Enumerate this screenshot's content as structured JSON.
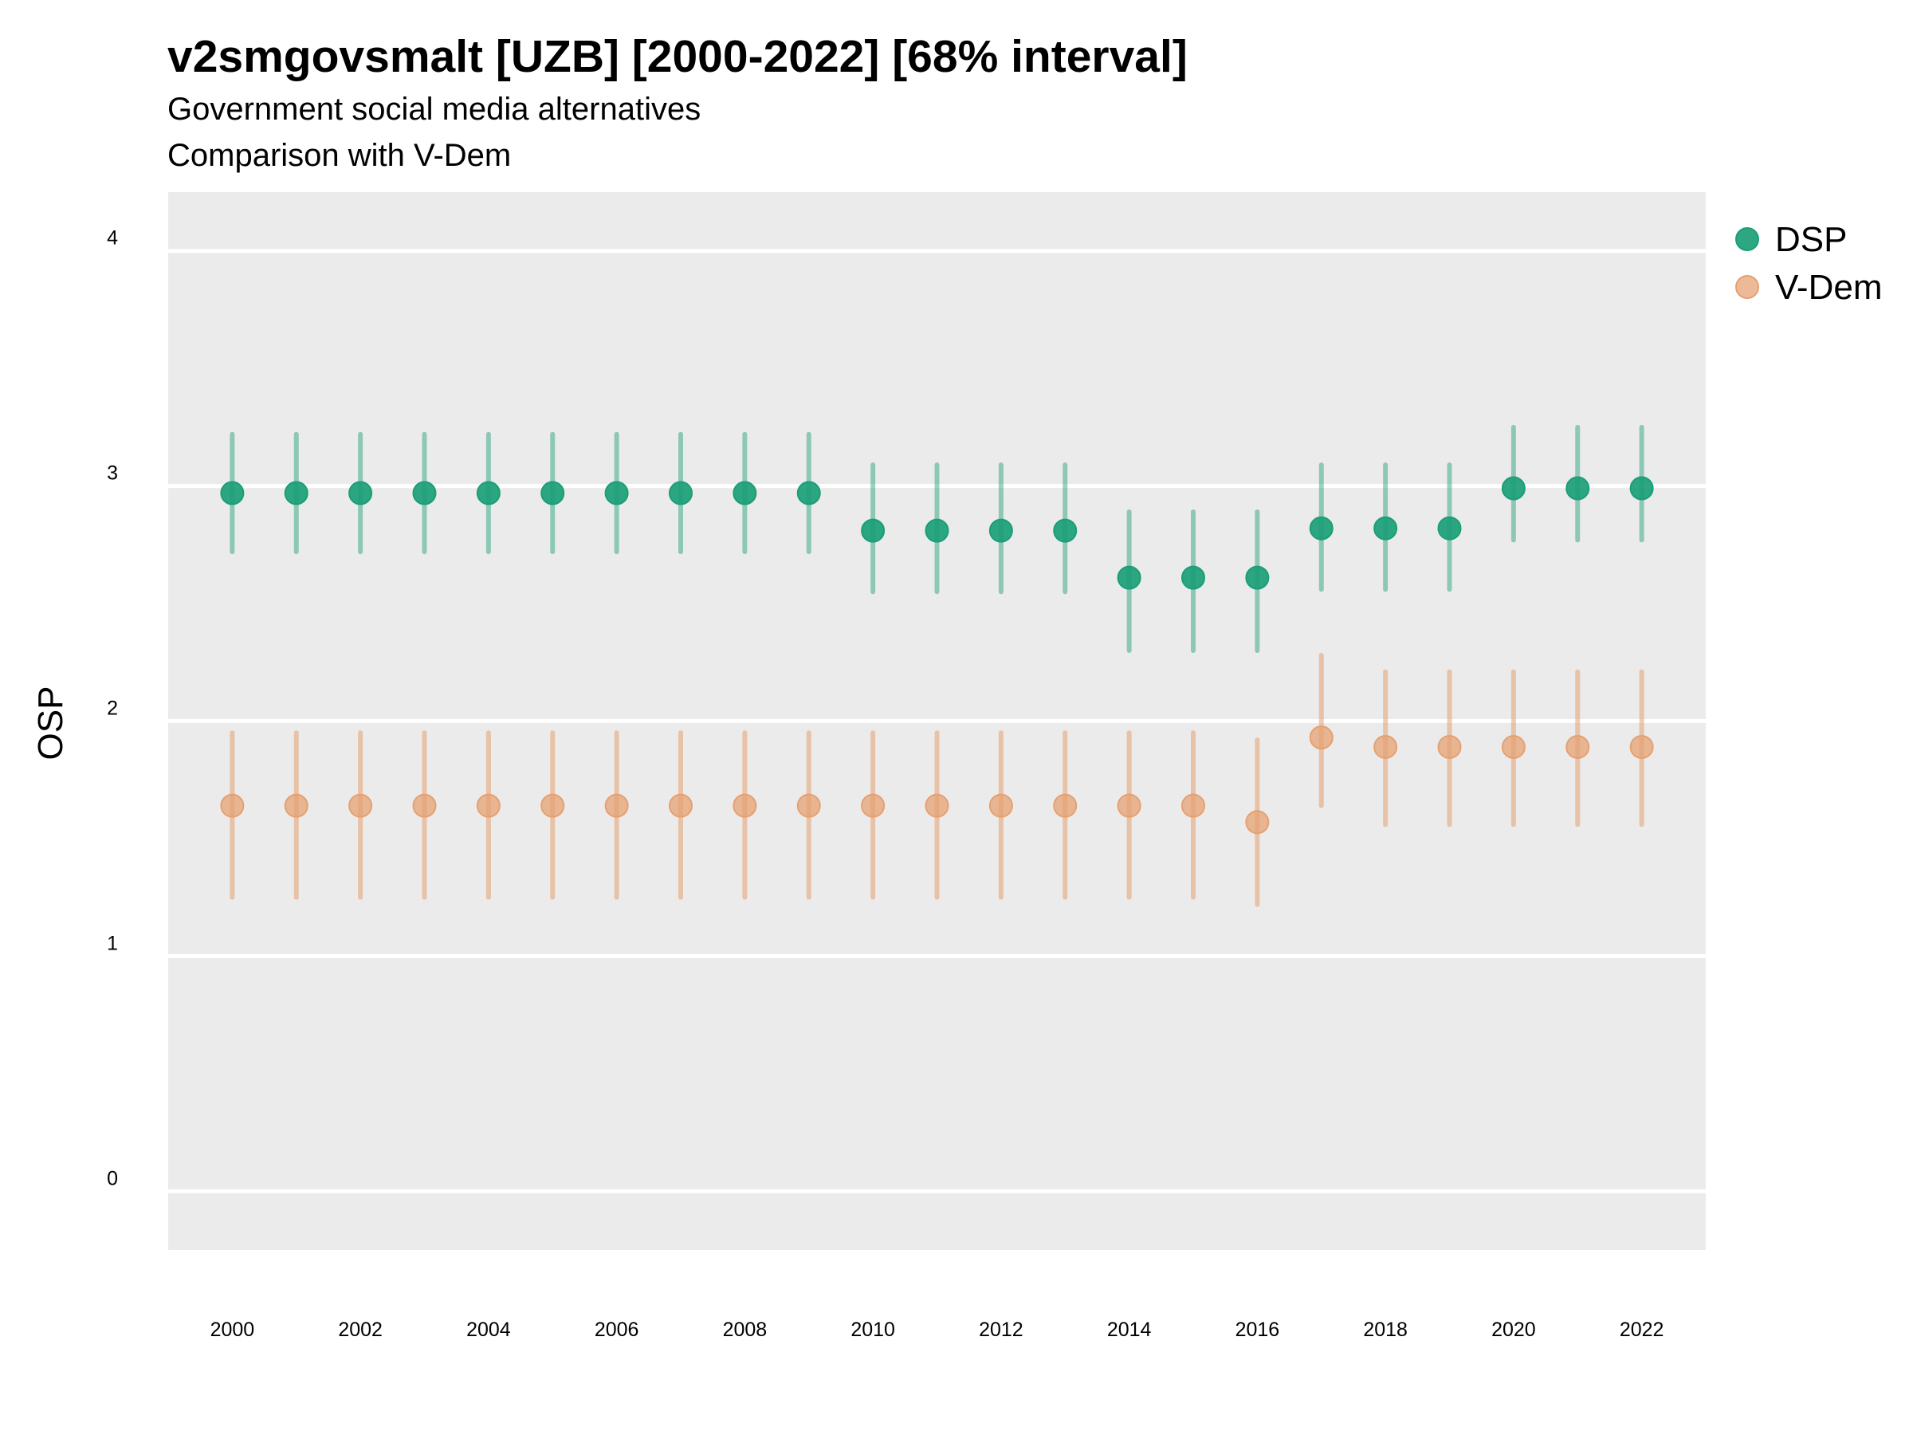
{
  "chart_data": {
    "type": "scatter",
    "title": "v2smgovsmalt [UZB] [2000-2022] [68% interval]",
    "subtitle": "Government social media alternatives",
    "subtitle2": "Comparison with V-Dem",
    "xlabel": "",
    "ylabel": "OSP",
    "xlim": [
      1999,
      2023
    ],
    "ylim": [
      -0.25,
      4.25
    ],
    "x_ticks": [
      2000,
      2002,
      2004,
      2006,
      2008,
      2010,
      2012,
      2014,
      2016,
      2018,
      2020,
      2022
    ],
    "y_ticks": [
      0,
      1,
      2,
      3,
      4
    ],
    "grid": true,
    "legend_position": "right",
    "series": [
      {
        "name": "DSP",
        "color": "#1b9e77",
        "x": [
          2000,
          2001,
          2002,
          2003,
          2004,
          2005,
          2006,
          2007,
          2008,
          2009,
          2010,
          2011,
          2012,
          2013,
          2014,
          2015,
          2016,
          2017,
          2018,
          2019,
          2020,
          2021,
          2022
        ],
        "y": [
          2.97,
          2.97,
          2.97,
          2.97,
          2.97,
          2.97,
          2.97,
          2.97,
          2.97,
          2.97,
          2.81,
          2.81,
          2.81,
          2.81,
          2.61,
          2.61,
          2.61,
          2.82,
          2.82,
          2.82,
          2.99,
          2.99,
          2.99
        ],
        "lower": [
          2.72,
          2.72,
          2.72,
          2.72,
          2.72,
          2.72,
          2.72,
          2.72,
          2.72,
          2.72,
          2.55,
          2.55,
          2.55,
          2.55,
          2.3,
          2.3,
          2.3,
          2.56,
          2.56,
          2.56,
          2.77,
          2.77,
          2.77
        ],
        "upper": [
          3.22,
          3.22,
          3.22,
          3.22,
          3.22,
          3.22,
          3.22,
          3.22,
          3.22,
          3.22,
          3.09,
          3.09,
          3.09,
          3.09,
          2.89,
          2.89,
          2.89,
          3.09,
          3.09,
          3.09,
          3.25,
          3.25,
          3.25
        ]
      },
      {
        "name": "V-Dem",
        "color": "#e6a070",
        "x": [
          2000,
          2001,
          2002,
          2003,
          2004,
          2005,
          2006,
          2007,
          2008,
          2009,
          2010,
          2011,
          2012,
          2013,
          2014,
          2015,
          2016,
          2017,
          2018,
          2019,
          2020,
          2021,
          2022
        ],
        "y": [
          1.64,
          1.64,
          1.64,
          1.64,
          1.64,
          1.64,
          1.64,
          1.64,
          1.64,
          1.64,
          1.64,
          1.64,
          1.64,
          1.64,
          1.64,
          1.64,
          1.57,
          1.93,
          1.89,
          1.89,
          1.89,
          1.89,
          1.89
        ],
        "lower": [
          1.25,
          1.25,
          1.25,
          1.25,
          1.25,
          1.25,
          1.25,
          1.25,
          1.25,
          1.25,
          1.25,
          1.25,
          1.25,
          1.25,
          1.25,
          1.25,
          1.22,
          1.64,
          1.56,
          1.56,
          1.56,
          1.56,
          1.56
        ],
        "upper": [
          1.95,
          1.95,
          1.95,
          1.95,
          1.95,
          1.95,
          1.95,
          1.95,
          1.95,
          1.95,
          1.95,
          1.95,
          1.95,
          1.95,
          1.95,
          1.95,
          1.92,
          2.28,
          2.21,
          2.21,
          2.21,
          2.21,
          2.21
        ]
      }
    ]
  }
}
